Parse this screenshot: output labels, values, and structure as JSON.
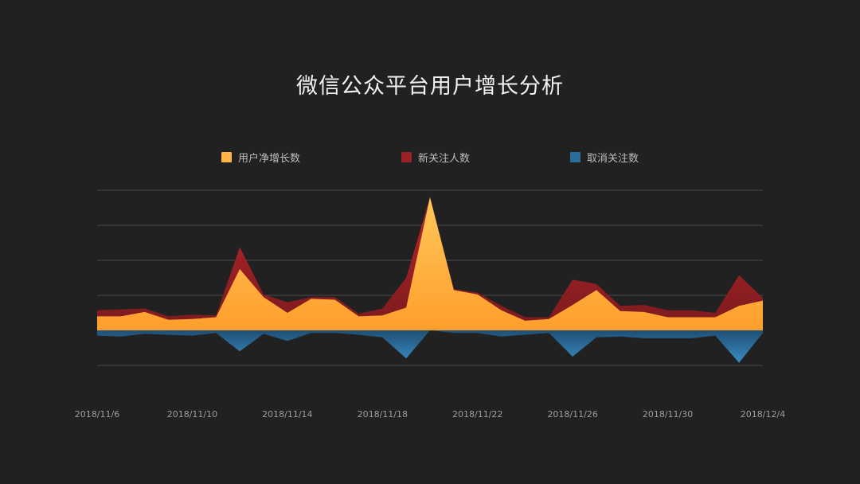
{
  "title": "微信公众平台用户增长分析",
  "legend": [
    {
      "label": "用户净增长数",
      "color": "#ffb545"
    },
    {
      "label": "新关注人数",
      "color": "#9b2226"
    },
    {
      "label": "取消关注数",
      "color": "#2a6f9c"
    }
  ],
  "chart_data": {
    "type": "area",
    "title": "微信公众平台用户增长分析",
    "xlabel": "",
    "ylabel": "",
    "ylim": [
      -40,
      160
    ],
    "grid": true,
    "legend_position": "top",
    "x": [
      "2018/11/6",
      "2018/11/7",
      "2018/11/8",
      "2018/11/9",
      "2018/11/10",
      "2018/11/11",
      "2018/11/12",
      "2018/11/13",
      "2018/11/14",
      "2018/11/15",
      "2018/11/16",
      "2018/11/17",
      "2018/11/18",
      "2018/11/19",
      "2018/11/20",
      "2018/11/21",
      "2018/11/22",
      "2018/11/23",
      "2018/11/24",
      "2018/11/25",
      "2018/11/26",
      "2018/11/27",
      "2018/11/28",
      "2018/11/29",
      "2018/11/30",
      "2018/12/1",
      "2018/12/2",
      "2018/12/3",
      "2018/12/4"
    ],
    "x_tick_labels": [
      "2018/11/6",
      "2018/11/10",
      "2018/11/14",
      "2018/11/18",
      "2018/11/22",
      "2018/11/26",
      "2018/11/30",
      "2018/12/4"
    ],
    "series": [
      {
        "name": "用户净增长数",
        "color": "#ffb545",
        "values": [
          16,
          16,
          21,
          12,
          13,
          15,
          70,
          38,
          20,
          36,
          35,
          16,
          17,
          26,
          152,
          46,
          41,
          23,
          11,
          13,
          29,
          46,
          22,
          21,
          15,
          15,
          15,
          28,
          34
        ]
      },
      {
        "name": "新关注人数",
        "color": "#9b2226",
        "values": [
          23,
          24,
          25,
          16,
          18,
          17,
          95,
          41,
          32,
          38,
          38,
          19,
          25,
          60,
          152,
          47,
          43,
          28,
          15,
          15,
          58,
          53,
          28,
          29,
          23,
          23,
          20,
          63,
          37
        ]
      },
      {
        "name": "取消关注数",
        "color": "#2a6f9c",
        "values": [
          -6,
          -7,
          -4,
          -5,
          -6,
          -3,
          -24,
          -4,
          -12,
          -3,
          -3,
          -5,
          -8,
          -32,
          0,
          -3,
          -3,
          -7,
          -5,
          -3,
          -30,
          -8,
          -7,
          -9,
          -9,
          -9,
          -6,
          -37,
          -3
        ]
      }
    ]
  }
}
